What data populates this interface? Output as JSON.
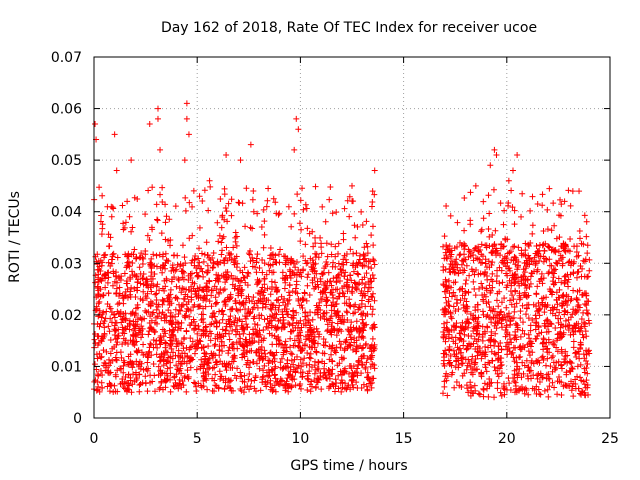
{
  "chart_data": {
    "type": "scatter",
    "title": "Day 162 of 2018, Rate Of TEC Index for receiver ucoe",
    "xlabel": "GPS time / hours",
    "ylabel": "ROTI / TECUs",
    "xlim": [
      0,
      25
    ],
    "ylim": [
      0,
      0.07
    ],
    "xticks": [
      0,
      5,
      10,
      15,
      20,
      25
    ],
    "xtick_labels": [
      "0",
      "5",
      "10",
      "15",
      "20",
      "25"
    ],
    "yticks": [
      0,
      0.01,
      0.02,
      0.03,
      0.04,
      0.05,
      0.06,
      0.07
    ],
    "ytick_labels": [
      "0",
      "0.01",
      "0.02",
      "0.03",
      "0.04",
      "0.05",
      "0.06",
      "0.07"
    ],
    "grid": true,
    "marker": "+",
    "series": [
      {
        "name": "ROTI",
        "color": "#ff0000",
        "segments": [
          {
            "start": 0.0,
            "end": 13.6,
            "base_low": 0.005,
            "base_high": 0.032
          },
          {
            "start": 16.9,
            "end": 24.0,
            "base_low": 0.004,
            "base_high": 0.034
          }
        ],
        "notable_points": [
          {
            "x": 0.05,
            "y": 0.057
          },
          {
            "x": 0.1,
            "y": 0.054
          },
          {
            "x": 1.0,
            "y": 0.055
          },
          {
            "x": 1.1,
            "y": 0.048
          },
          {
            "x": 2.7,
            "y": 0.057
          },
          {
            "x": 3.1,
            "y": 0.06
          },
          {
            "x": 3.1,
            "y": 0.058
          },
          {
            "x": 3.2,
            "y": 0.052
          },
          {
            "x": 4.5,
            "y": 0.061
          },
          {
            "x": 4.5,
            "y": 0.058
          },
          {
            "x": 4.6,
            "y": 0.055
          },
          {
            "x": 4.4,
            "y": 0.05
          },
          {
            "x": 1.8,
            "y": 0.05
          },
          {
            "x": 6.4,
            "y": 0.051
          },
          {
            "x": 7.1,
            "y": 0.05
          },
          {
            "x": 7.6,
            "y": 0.053
          },
          {
            "x": 9.8,
            "y": 0.058
          },
          {
            "x": 9.9,
            "y": 0.056
          },
          {
            "x": 9.7,
            "y": 0.052
          },
          {
            "x": 5.6,
            "y": 0.046
          },
          {
            "x": 13.6,
            "y": 0.048
          },
          {
            "x": 13.5,
            "y": 0.044
          },
          {
            "x": 12.5,
            "y": 0.045
          },
          {
            "x": 19.4,
            "y": 0.052
          },
          {
            "x": 19.5,
            "y": 0.051
          },
          {
            "x": 19.2,
            "y": 0.049
          },
          {
            "x": 20.5,
            "y": 0.051
          },
          {
            "x": 20.3,
            "y": 0.048
          },
          {
            "x": 20.1,
            "y": 0.046
          },
          {
            "x": 23.5,
            "y": 0.044
          },
          {
            "x": 23.2,
            "y": 0.044
          },
          {
            "x": 22.8,
            "y": 0.042
          },
          {
            "x": 18.5,
            "y": 0.045
          }
        ]
      }
    ]
  }
}
